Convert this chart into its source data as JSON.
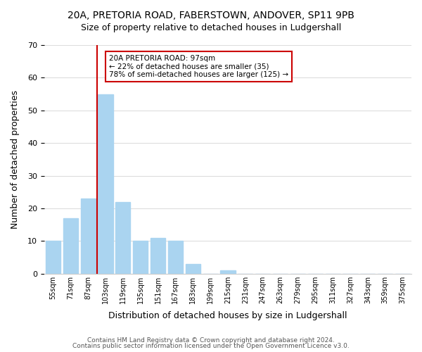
{
  "title_line1": "20A, PRETORIA ROAD, FABERSTOWN, ANDOVER, SP11 9PB",
  "title_line2": "Size of property relative to detached houses in Ludgershall",
  "xlabel": "Distribution of detached houses by size in Ludgershall",
  "ylabel": "Number of detached properties",
  "bar_labels": [
    "55sqm",
    "71sqm",
    "87sqm",
    "103sqm",
    "119sqm",
    "135sqm",
    "151sqm",
    "167sqm",
    "183sqm",
    "199sqm",
    "215sqm",
    "231sqm",
    "247sqm",
    "263sqm",
    "279sqm",
    "295sqm",
    "311sqm",
    "327sqm",
    "343sqm",
    "359sqm",
    "375sqm"
  ],
  "bar_values": [
    10,
    17,
    23,
    55,
    22,
    10,
    11,
    10,
    3,
    0,
    1,
    0,
    0,
    0,
    0,
    0,
    0,
    0,
    0,
    0,
    0
  ],
  "bar_color": "#aad4f0",
  "vline_x": 3,
  "vline_color": "#cc0000",
  "annotation_title": "20A PRETORIA ROAD: 97sqm",
  "annotation_line2": "← 22% of detached houses are smaller (35)",
  "annotation_line3": "78% of semi-detached houses are larger (125) →",
  "annotation_box_color": "#ffffff",
  "annotation_box_edge_color": "#cc0000",
  "ylim": [
    0,
    70
  ],
  "yticks": [
    0,
    10,
    20,
    30,
    40,
    50,
    60,
    70
  ],
  "footer_line1": "Contains HM Land Registry data © Crown copyright and database right 2024.",
  "footer_line2": "Contains public sector information licensed under the Open Government Licence v3.0.",
  "background_color": "#ffffff",
  "grid_color": "#dddddd"
}
